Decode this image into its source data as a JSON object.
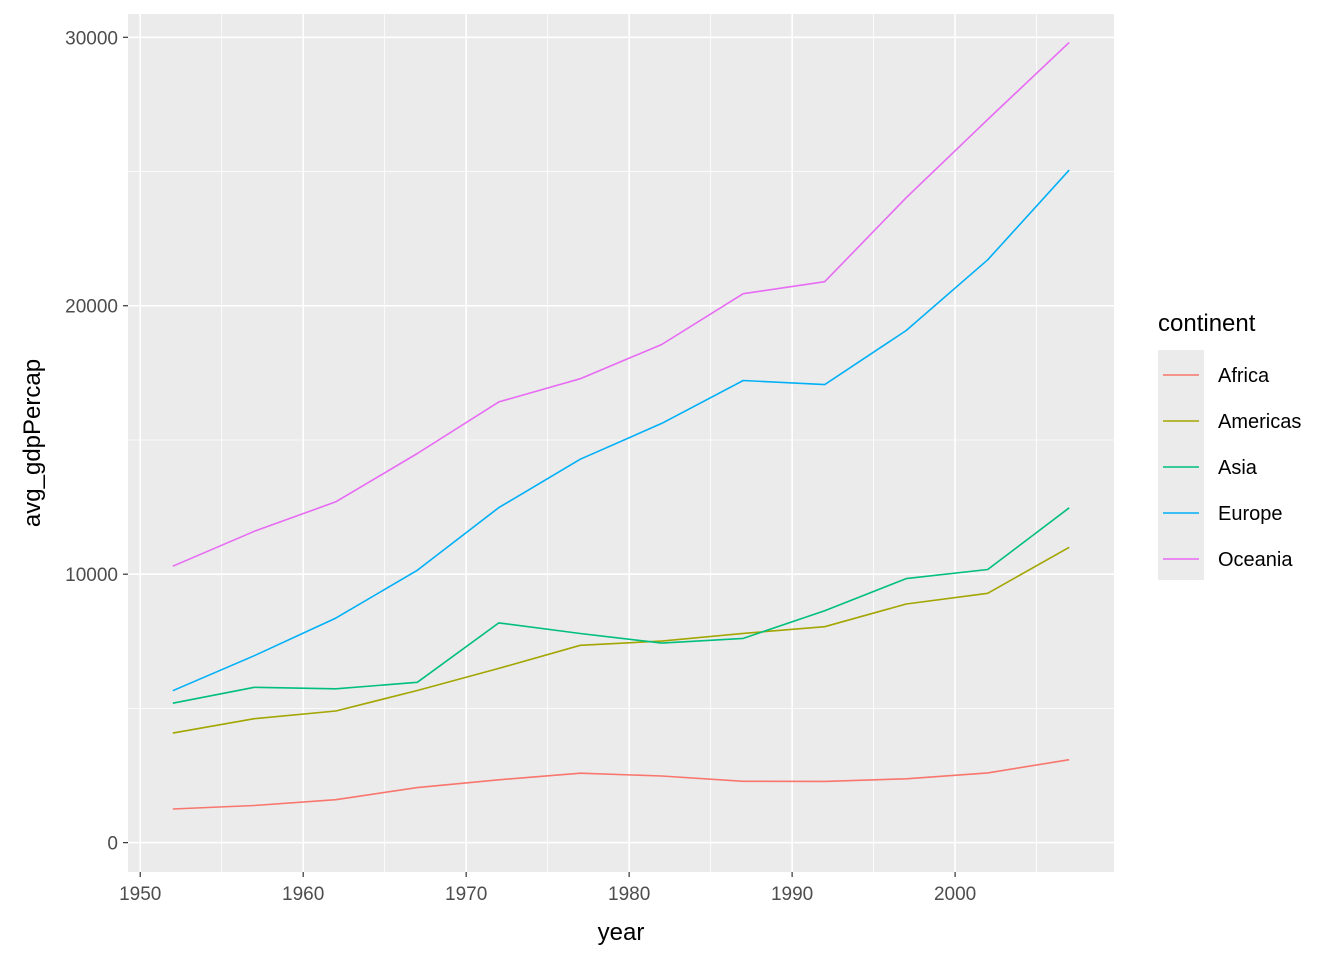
{
  "chart_data": {
    "type": "line",
    "xlabel": "year",
    "ylabel": "avg_gdpPercap",
    "xlim": [
      1949.25,
      2009.75
    ],
    "ylim": [
      -1094,
      30868
    ],
    "x_ticks": [
      1950,
      1960,
      1970,
      1980,
      1990,
      2000
    ],
    "x_tick_labels": [
      "1950",
      "1960",
      "1970",
      "1980",
      "1990",
      "2000"
    ],
    "y_ticks": [
      0,
      10000,
      20000,
      30000
    ],
    "y_tick_labels": [
      "0",
      "10000",
      "20000",
      "30000"
    ],
    "grid": true,
    "legend_title": "continent",
    "legend_position": "right",
    "x": [
      1952,
      1957,
      1962,
      1967,
      1972,
      1977,
      1982,
      1987,
      1992,
      1997,
      2002,
      2007
    ],
    "series": [
      {
        "name": "Africa",
        "color": "#F8766D",
        "values": [
          1253,
          1385,
          1598,
          2050,
          2340,
          2586,
          2482,
          2283,
          2282,
          2379,
          2599,
          3089
        ]
      },
      {
        "name": "Americas",
        "color": "#A3A500",
        "values": [
          4079,
          4616,
          4902,
          5668,
          6491,
          7352,
          7507,
          7793,
          8045,
          8890,
          9288,
          11003
        ]
      },
      {
        "name": "Asia",
        "color": "#00BF7D",
        "values": [
          5195,
          5788,
          5729,
          5971,
          8187,
          7791,
          7434,
          7608,
          8639,
          9834,
          10174,
          12473
        ]
      },
      {
        "name": "Europe",
        "color": "#00B0F6",
        "values": [
          5661,
          6963,
          8365,
          10144,
          12480,
          14284,
          15618,
          17214,
          17062,
          19077,
          21712,
          25054
        ]
      },
      {
        "name": "Oceania",
        "color": "#E76BF3",
        "values": [
          10298,
          11599,
          12696,
          14496,
          16417,
          17284,
          18555,
          20448,
          20894,
          24024,
          26939,
          29810
        ]
      }
    ]
  }
}
